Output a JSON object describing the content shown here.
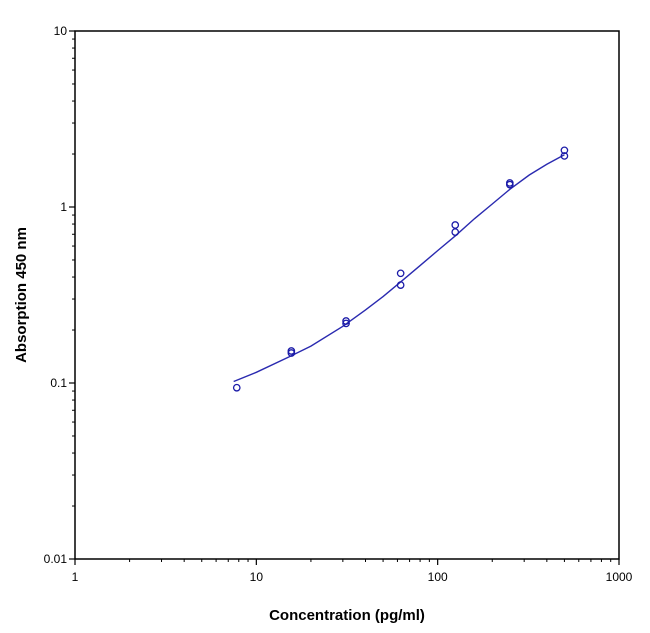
{
  "chart_data": {
    "type": "scatter",
    "title": "",
    "xlabel": "Concentration (pg/ml)",
    "ylabel": "Absorption 450 nm",
    "x_scale": "log",
    "y_scale": "log",
    "xlim": [
      1,
      1000
    ],
    "ylim": [
      0.01,
      10
    ],
    "x_ticks": [
      {
        "value": 1,
        "label": "1"
      },
      {
        "value": 10,
        "label": "10"
      },
      {
        "value": 100,
        "label": "100"
      },
      {
        "value": 1000,
        "label": "1000"
      }
    ],
    "y_ticks": [
      {
        "value": 0.01,
        "label": "0.01"
      },
      {
        "value": 0.1,
        "label": "0.1"
      },
      {
        "value": 1,
        "label": "1"
      },
      {
        "value": 10,
        "label": "10"
      }
    ],
    "grid": false,
    "legend": "none",
    "marker_color": "#1a1aa8",
    "curve_color": "#2a2ab0",
    "series": [
      {
        "marker": "open-circle",
        "points": [
          {
            "x": 7.8,
            "y": 0.094
          },
          {
            "x": 15.6,
            "y": 0.148
          },
          {
            "x": 15.6,
            "y": 0.152
          },
          {
            "x": 31.25,
            "y": 0.218
          },
          {
            "x": 31.25,
            "y": 0.225
          },
          {
            "x": 62.5,
            "y": 0.36
          },
          {
            "x": 62.5,
            "y": 0.42
          },
          {
            "x": 125,
            "y": 0.72
          },
          {
            "x": 125,
            "y": 0.79
          },
          {
            "x": 250,
            "y": 1.34
          },
          {
            "x": 250,
            "y": 1.37
          },
          {
            "x": 500,
            "y": 1.95
          },
          {
            "x": 500,
            "y": 2.1
          }
        ]
      }
    ],
    "fit_curve": {
      "points": [
        {
          "x": 7.5,
          "y": 0.102
        },
        {
          "x": 10,
          "y": 0.115
        },
        {
          "x": 15,
          "y": 0.14
        },
        {
          "x": 20,
          "y": 0.162
        },
        {
          "x": 30,
          "y": 0.21
        },
        {
          "x": 40,
          "y": 0.26
        },
        {
          "x": 50,
          "y": 0.31
        },
        {
          "x": 62.5,
          "y": 0.375
        },
        {
          "x": 80,
          "y": 0.465
        },
        {
          "x": 100,
          "y": 0.565
        },
        {
          "x": 125,
          "y": 0.685
        },
        {
          "x": 160,
          "y": 0.86
        },
        {
          "x": 200,
          "y": 1.04
        },
        {
          "x": 250,
          "y": 1.26
        },
        {
          "x": 320,
          "y": 1.52
        },
        {
          "x": 400,
          "y": 1.75
        },
        {
          "x": 500,
          "y": 1.98
        }
      ]
    }
  }
}
